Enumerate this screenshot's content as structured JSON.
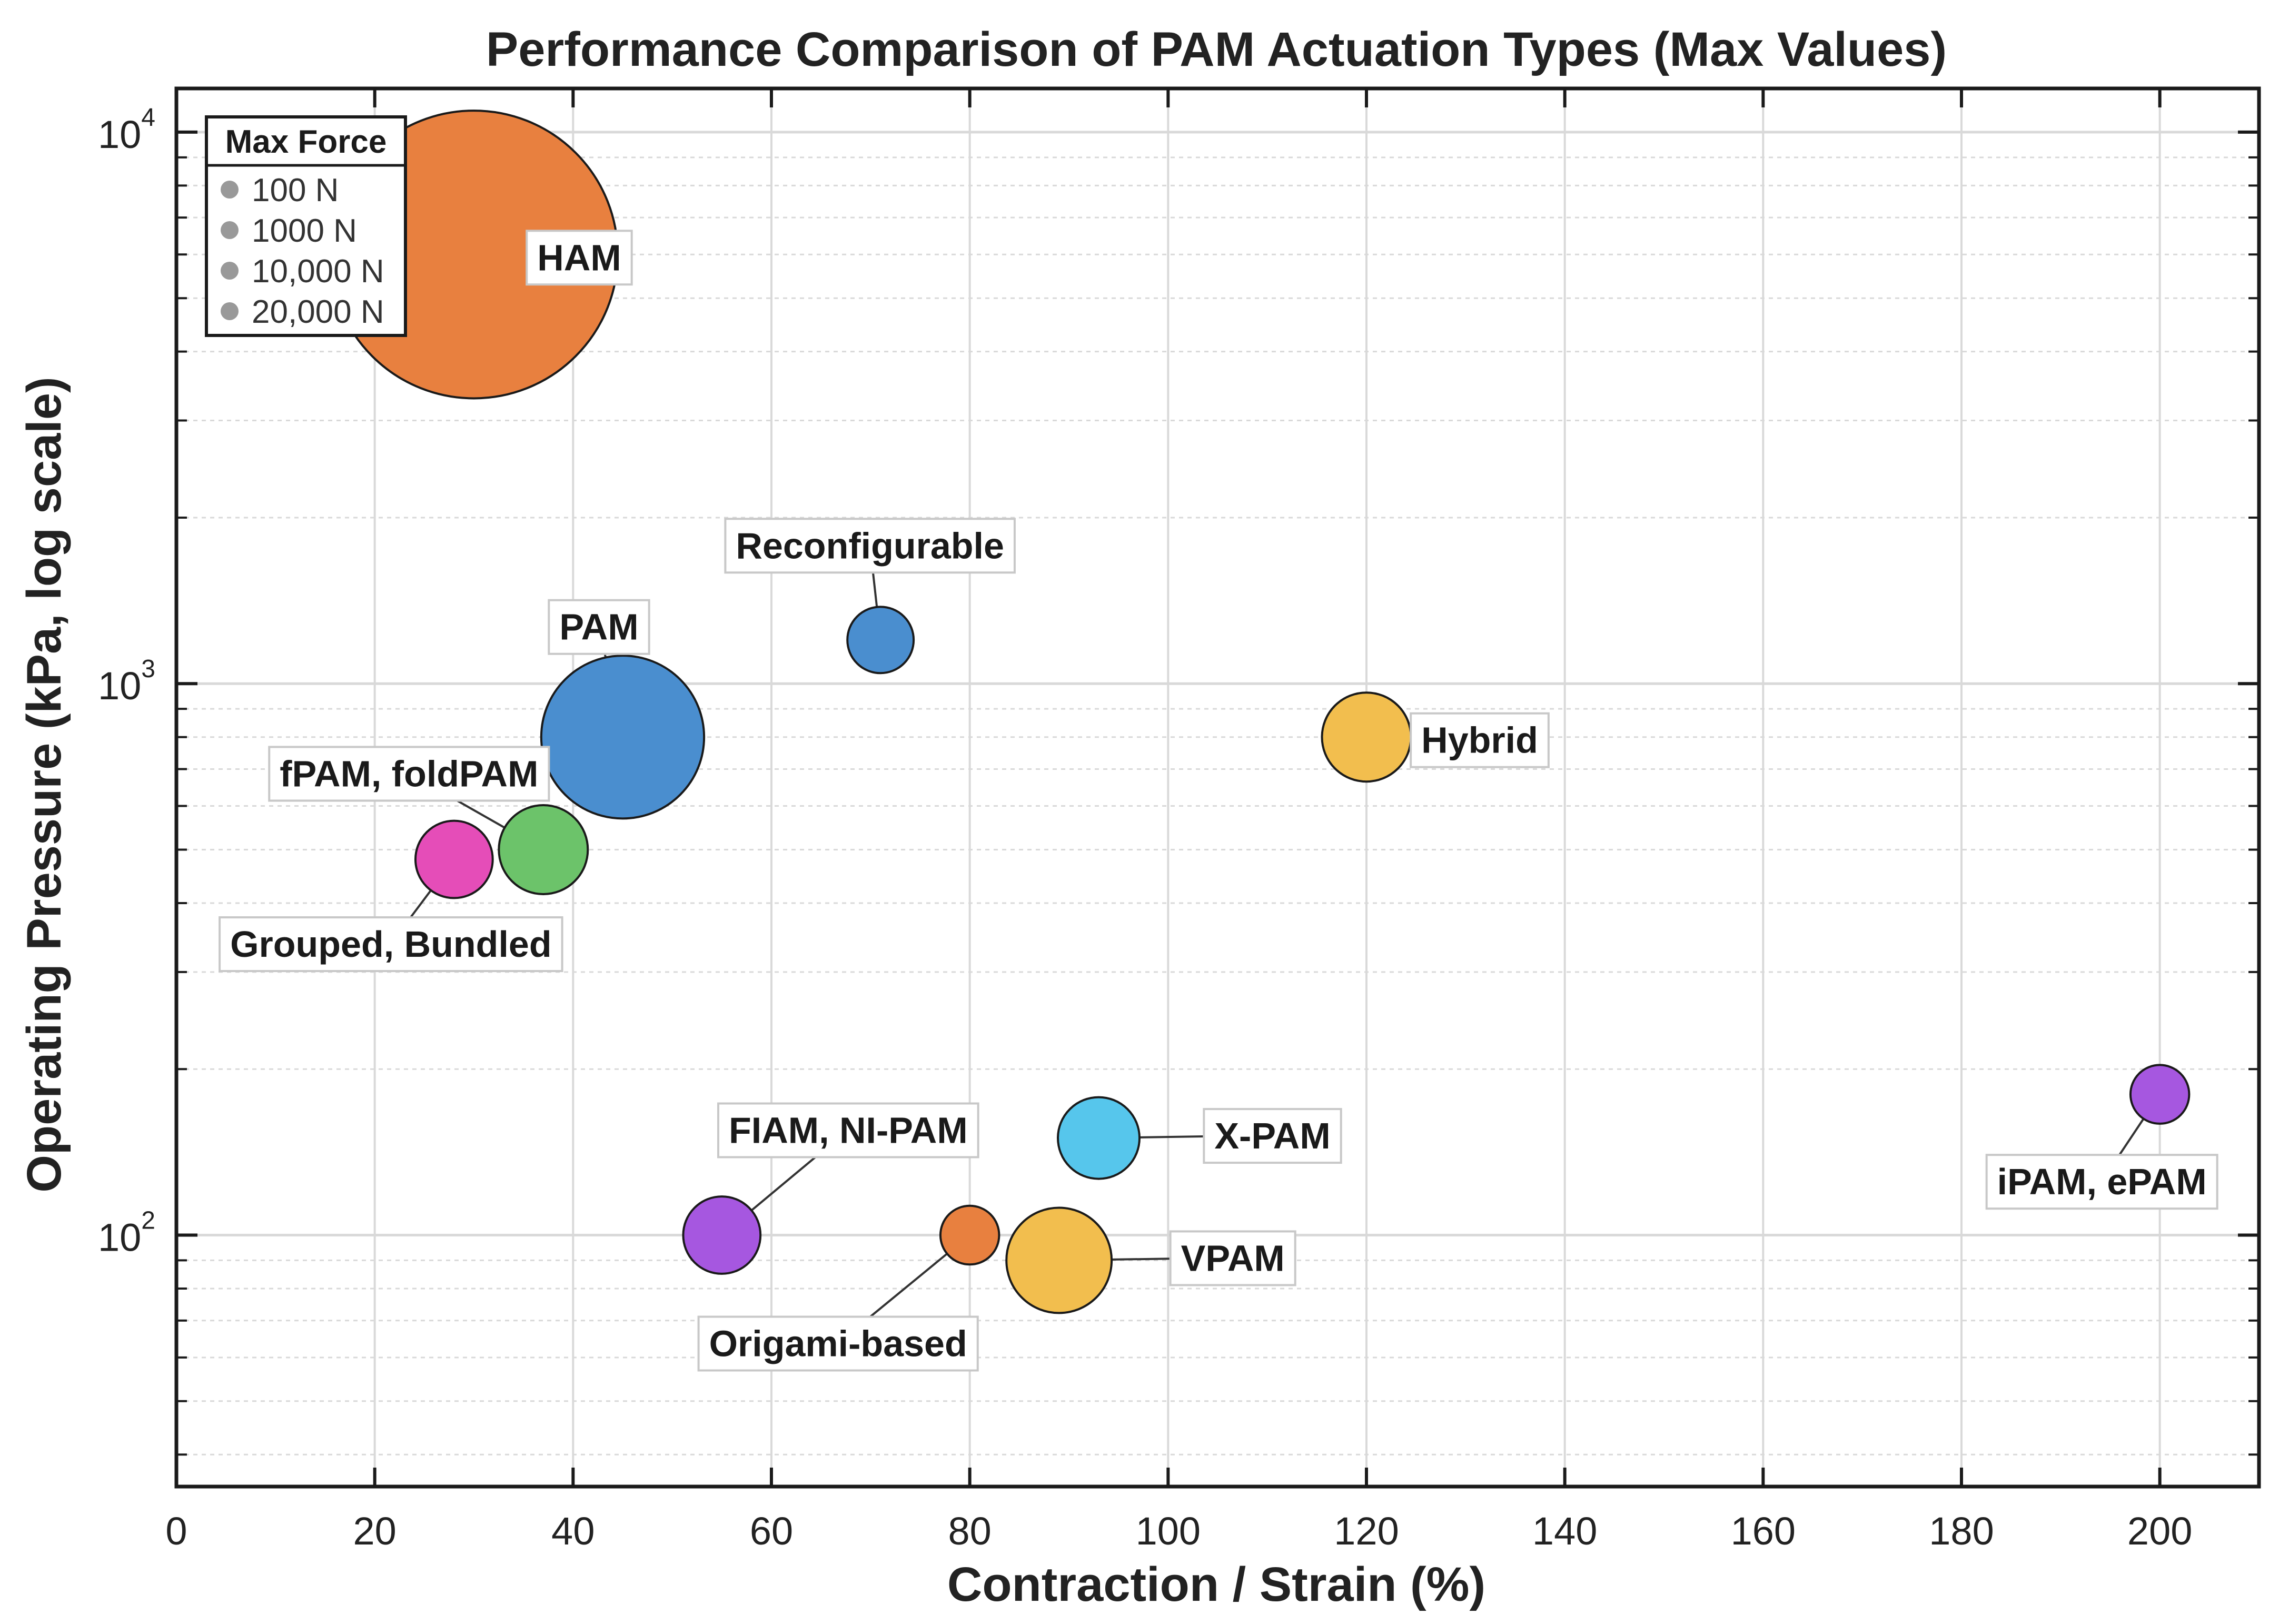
{
  "chart_data": {
    "type": "scatter",
    "title": "Performance Comparison of PAM Actuation Types (Max Values)",
    "xlabel": "Contraction / Strain (%)",
    "ylabel": "Operating Pressure (kPa, log scale)",
    "xlim": [
      0,
      210
    ],
    "ylim": [
      35,
      12000
    ],
    "yscale": "log",
    "grid": true,
    "x_ticks": [
      0,
      20,
      40,
      60,
      80,
      100,
      120,
      140,
      160,
      180,
      200
    ],
    "y_ticks": [
      {
        "base": "10",
        "exp": "2",
        "value": 100
      },
      {
        "base": "10",
        "exp": "3",
        "value": 1000
      },
      {
        "base": "10",
        "exp": "4",
        "value": 10000
      }
    ],
    "legend": {
      "title": "Max Force",
      "placement": "top-left",
      "entries": [
        "100 N",
        "1000 N",
        "10,000 N",
        "20,000 N"
      ],
      "marker_color": "#999999"
    },
    "points": [
      {
        "label": "HAM",
        "x": 30,
        "y": 6000,
        "force": 20000,
        "color": "#E8803F",
        "label_offset": [
          200,
          5
        ]
      },
      {
        "label": "Reconfigurable",
        "x": 71,
        "y": 1200,
        "force": 150,
        "color": "#4A8ECF",
        "label_offset": [
          -20,
          -180
        ]
      },
      {
        "label": "PAM",
        "x": 45,
        "y": 800,
        "force": 3000,
        "color": "#4A8ECF",
        "label_offset": [
          -45,
          -210
        ]
      },
      {
        "label": "Hybrid",
        "x": 120,
        "y": 800,
        "force": 400,
        "color": "#F2BE4E",
        "label_offset": [
          215,
          5
        ]
      },
      {
        "label": "fPAM, foldPAM",
        "x": 37,
        "y": 500,
        "force": 400,
        "color": "#6CC36A",
        "label_offset": [
          -255,
          -145
        ]
      },
      {
        "label": "Grouped, Bundled",
        "x": 28,
        "y": 480,
        "force": 250,
        "color": "#E54DB8",
        "label_offset": [
          -120,
          160
        ]
      },
      {
        "label": "FIAM, NI-PAM",
        "x": 55,
        "y": 100,
        "force": 250,
        "color": "#A657E0",
        "label_offset": [
          240,
          -200
        ]
      },
      {
        "label": "X-PAM",
        "x": 93,
        "y": 150,
        "force": 300,
        "color": "#56C6EC",
        "label_offset": [
          330,
          -5
        ]
      },
      {
        "label": "iPAM, ePAM",
        "x": 200,
        "y": 180,
        "force": 100,
        "color": "#A657E0",
        "label_offset": [
          -110,
          165
        ]
      },
      {
        "label": "Origami-based",
        "x": 80,
        "y": 100,
        "force": 100,
        "color": "#E8803F",
        "label_offset": [
          -250,
          205
        ]
      },
      {
        "label": "VPAM",
        "x": 89,
        "y": 90,
        "force": 700,
        "color": "#F2BE4E",
        "label_offset": [
          330,
          -5
        ]
      }
    ]
  }
}
